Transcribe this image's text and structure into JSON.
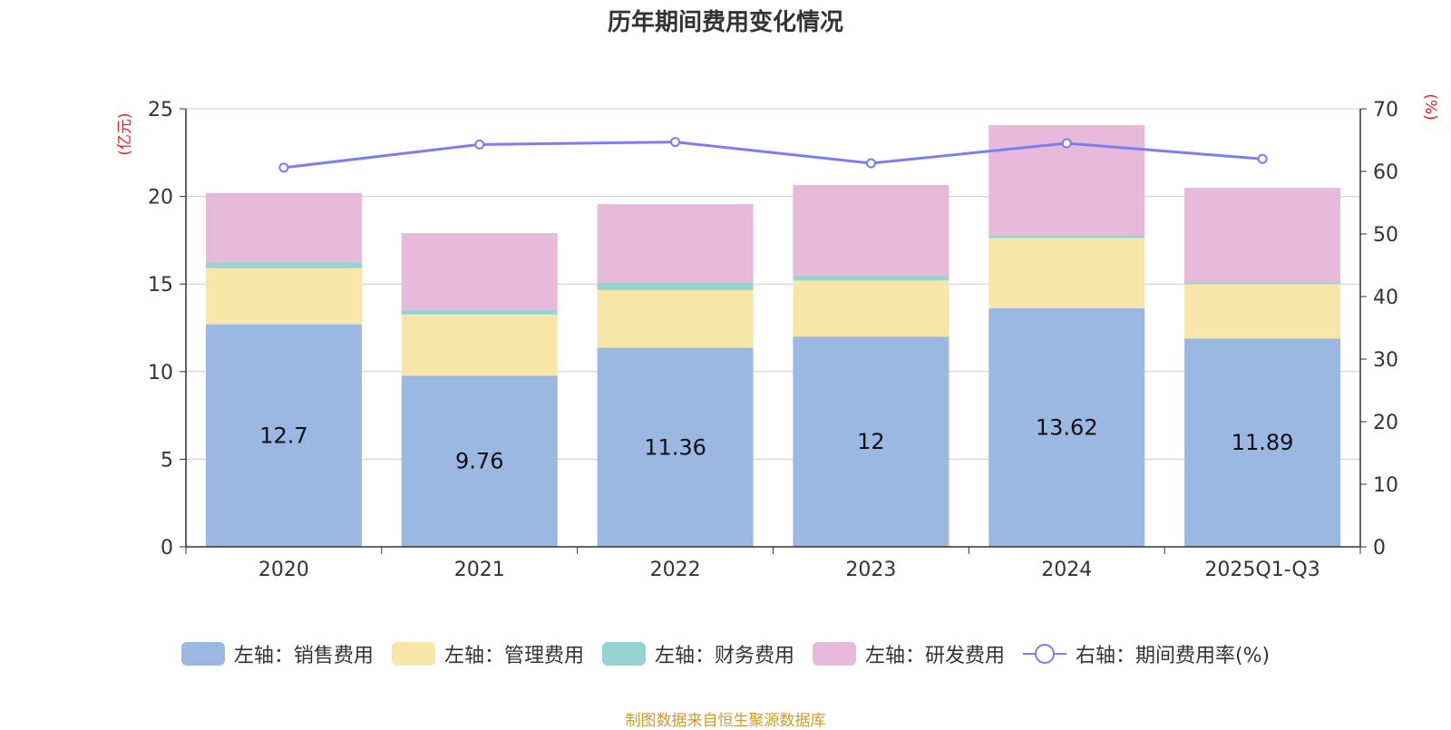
{
  "title": "历年期间费用变化情况",
  "source": "制图数据来自恒生聚源数据库",
  "colors": {
    "sales": "#9bb8e2",
    "admin": "#f7e6a7",
    "finance": "#96d3d2",
    "rnd": "#e7b9da",
    "rate": "#7b7ef0",
    "axis_unit": "#ee1c1c",
    "source": "#d19a2a",
    "grid": "#cccccc",
    "text": "#333333"
  },
  "chart_data": {
    "type": "bar",
    "stacked": true,
    "categories": [
      "2020",
      "2021",
      "2022",
      "2023",
      "2024",
      "2025Q1-Q3"
    ],
    "series": [
      {
        "name": "左轴：销售费用",
        "key": "sales",
        "axis": "left",
        "values": [
          12.7,
          9.76,
          11.36,
          12,
          13.62,
          11.89
        ],
        "show_labels": true
      },
      {
        "name": "左轴：管理费用",
        "key": "admin",
        "axis": "left",
        "values": [
          3.2,
          3.5,
          3.3,
          3.2,
          4.0,
          3.1
        ],
        "show_labels": false
      },
      {
        "name": "左轴：财务费用",
        "key": "finance",
        "axis": "left",
        "values": [
          0.3,
          0.25,
          0.4,
          0.25,
          0.15,
          0.1
        ],
        "show_labels": false
      },
      {
        "name": "左轴：研发费用",
        "key": "rnd",
        "axis": "left",
        "values": [
          4.0,
          4.4,
          4.5,
          5.2,
          6.3,
          5.4
        ],
        "show_labels": false
      }
    ],
    "line_series": {
      "name": "右轴：期间费用率(%)",
      "key": "rate",
      "axis": "right",
      "values": [
        60.6,
        64.3,
        64.7,
        61.3,
        64.5,
        62.0
      ]
    },
    "left_axis": {
      "unit": "(亿元)",
      "ylim": [
        0,
        25
      ],
      "ticks": [
        "0",
        "5",
        "10",
        "15",
        "20",
        "25"
      ]
    },
    "right_axis": {
      "unit": "(%)",
      "ylim": [
        0,
        70
      ],
      "ticks": [
        "0",
        "10",
        "20",
        "30",
        "40",
        "50",
        "60",
        "70"
      ]
    },
    "grid": true,
    "legend_position": "bottom-center"
  }
}
